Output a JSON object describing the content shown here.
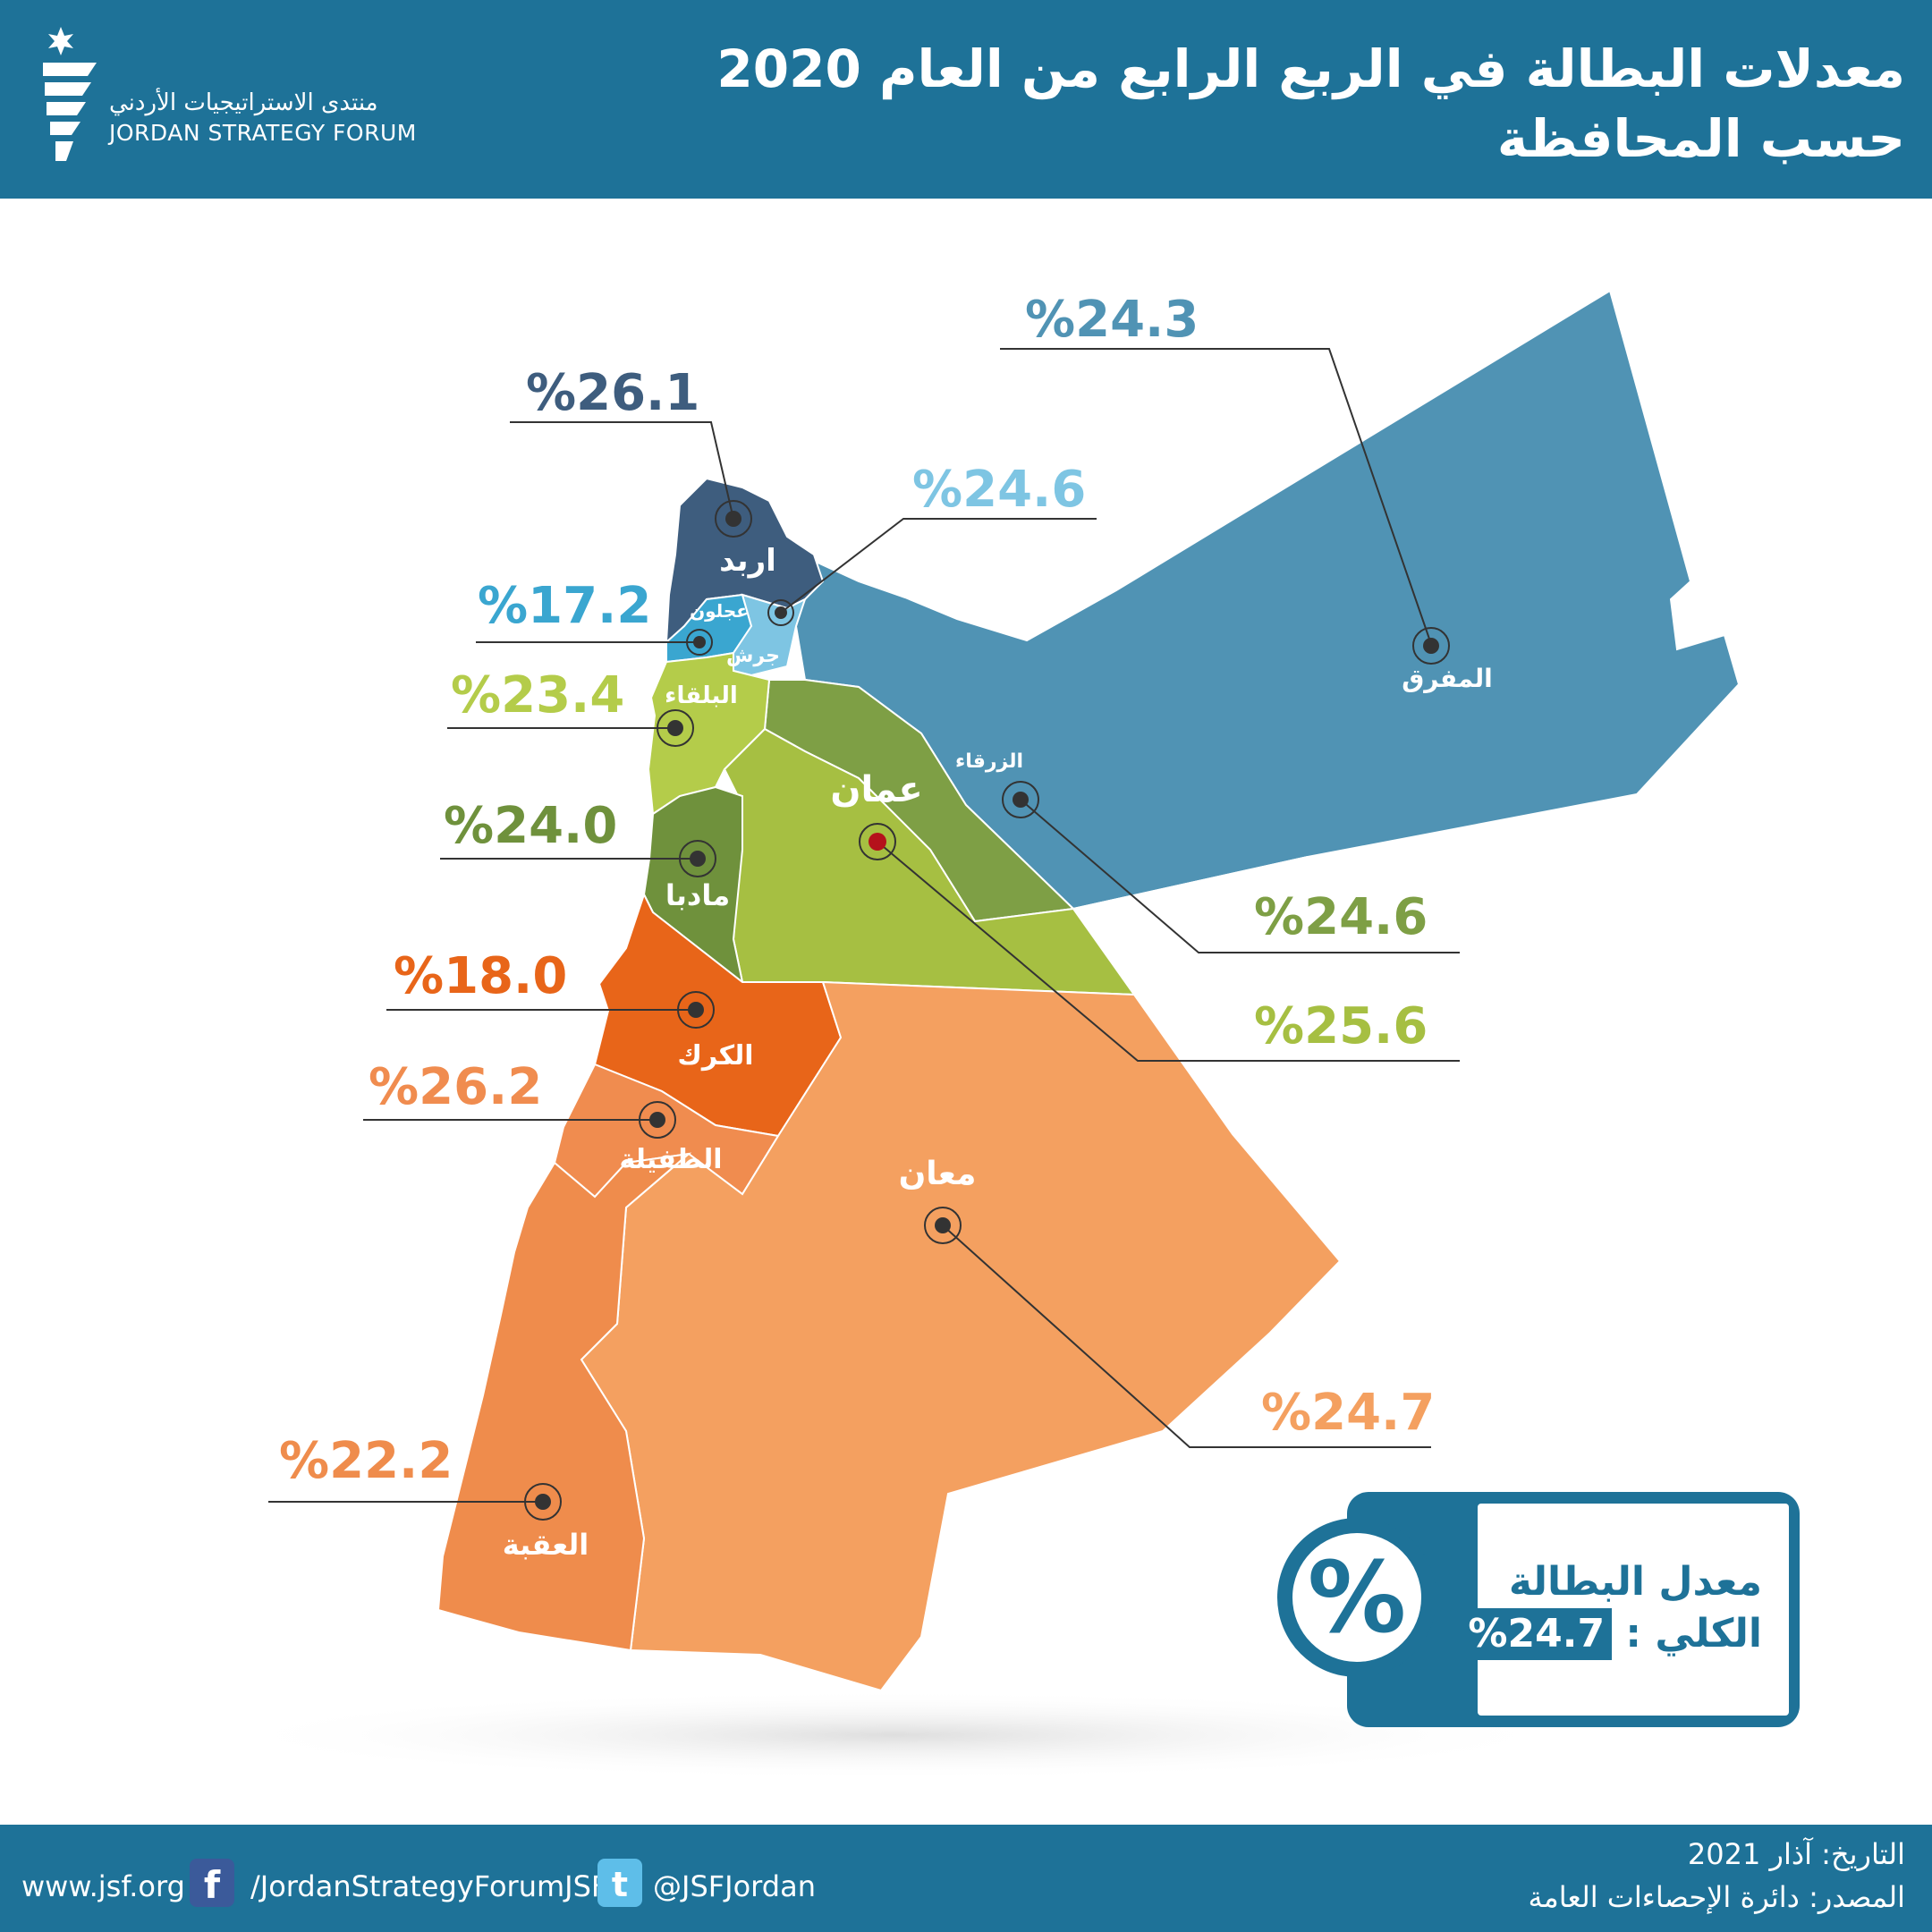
{
  "header": {
    "title_line1": "معدلات البطالة في الربع الرابع من العام 2020",
    "title_line2": "حسب المحافظة",
    "logo_ar": "منتدى الاستراتيجيات الأردني",
    "logo_en": "JORDAN STRATEGY FORUM"
  },
  "governorates": [
    {
      "name": "المفرق",
      "value": "%24.3",
      "color": "#5093b4",
      "value_color": "#5093b4"
    },
    {
      "name": "اربد",
      "value": "%26.1",
      "color": "#3e5d7e",
      "value_color": "#3e5d7e"
    },
    {
      "name": "جرش",
      "value": "%24.6",
      "color": "#7ec5e3",
      "value_color": "#7ec5e3"
    },
    {
      "name": "عجلون",
      "value": "%17.2",
      "color": "#3aa6d0",
      "value_color": "#3aa6d0"
    },
    {
      "name": "البلقاء",
      "value": "%23.4",
      "color": "#b4cc4a",
      "value_color": "#b4cc4a"
    },
    {
      "name": "الزرقاء",
      "value": "%24.6",
      "color": "#7e9f45",
      "value_color": "#7e9f45"
    },
    {
      "name": "عمان",
      "value": "%25.6",
      "color": "#a6bf42",
      "value_color": "#a6bf42"
    },
    {
      "name": "مادبا",
      "value": "%24.0",
      "color": "#6f913c",
      "value_color": "#6f913c"
    },
    {
      "name": "الكرك",
      "value": "%18.0",
      "color": "#e86519",
      "value_color": "#e86519"
    },
    {
      "name": "الطفيلة",
      "value": "%26.2",
      "color": "#f08c4f",
      "value_color": "#f08c4f"
    },
    {
      "name": "معان",
      "value": "%24.7",
      "color": "#f4a060",
      "value_color": "#f4a060"
    },
    {
      "name": "العقبة",
      "value": "%22.2",
      "color": "#ef8c4c",
      "value_color": "#ef8c4c"
    }
  ],
  "legend": {
    "line1": "معدل البطالة",
    "line2": "الكلي :",
    "value": "%24.7",
    "symbol": "%"
  },
  "footer": {
    "date": "التاريخ: آذار 2021",
    "source": "المصدر: دائرة الإحصاءات العامة",
    "website": "www.jsf.org",
    "facebook": "/JordanStrategyForumJSF",
    "twitter": "@JSFJordan",
    "facebook_icon": "facebook-icon",
    "twitter_icon": "twitter-icon"
  }
}
